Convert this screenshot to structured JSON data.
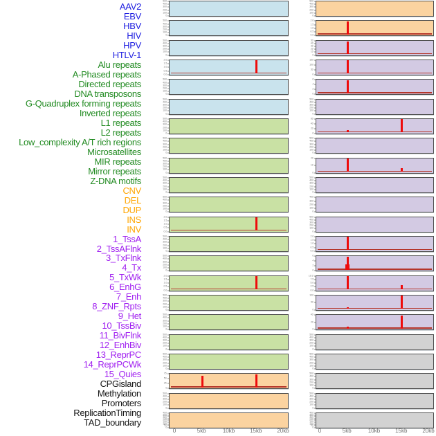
{
  "chart_data": {
    "type": "area",
    "description": "Grid of 44 small density panels in two columns (22 rows each, column-major order matching the label list). Red baseline curves with sharp spikes mark feature density around positions 5kb and 15kb on a 0-20kb axis.",
    "columns": 2,
    "rows_per_column": 22,
    "x_axis_left": {
      "tick_labels": [
        "0",
        "5kb",
        "10kb",
        "15kb",
        "20kb"
      ],
      "tick_kb": [
        0,
        5,
        10,
        15,
        20
      ],
      "range_kb": [
        0,
        20
      ]
    },
    "x_axis_right": {
      "tick_labels": [
        "0",
        "5kb",
        "10kb",
        "15kb",
        "20kb"
      ],
      "tick_kb": [
        0,
        5,
        10,
        15,
        20
      ],
      "range_kb": [
        0,
        20
      ]
    },
    "group_label_colors": {
      "virus": "#1c1ce0",
      "repeat": "#228B22",
      "sv": "#FFA500",
      "chromhmm": "#A020F0",
      "other": "#141414"
    },
    "panel_fill_colors": {
      "virus": "#C9E3ED",
      "repeat": "#C9E1A4",
      "sv": "#FBD3A0",
      "chromhmm": "#D3CAE3",
      "other": "#D2D2D2"
    },
    "signal_color": "#ee0b0b",
    "baseline_color": "#b5352a",
    "panels": [
      {
        "label": "AAV2",
        "group": "virus",
        "yticks": [
          "500",
          "400",
          "300",
          "200",
          "100",
          "0"
        ],
        "baseline": false,
        "spikes": []
      },
      {
        "label": "EBV",
        "group": "virus",
        "yticks": [
          "500",
          "400",
          "300",
          "200",
          "100",
          "0"
        ],
        "baseline": false,
        "spikes": []
      },
      {
        "label": "HBV",
        "group": "virus",
        "yticks": [
          "500",
          "400",
          "300",
          "200",
          "100",
          "0"
        ],
        "baseline": false,
        "spikes": []
      },
      {
        "label": "HIV",
        "group": "virus",
        "yticks": [
          "2.0",
          "1.5",
          "1.0",
          "0.5",
          "0.0"
        ],
        "baseline": true,
        "spikes": [
          {
            "kb": 15,
            "h": 1.0
          }
        ]
      },
      {
        "label": "HPV",
        "group": "virus",
        "yticks": [
          "500",
          "400",
          "300",
          "200",
          "100",
          "0"
        ],
        "baseline": false,
        "spikes": []
      },
      {
        "label": "HTLV-1",
        "group": "virus",
        "yticks": [
          "500",
          "400",
          "300",
          "200",
          "100",
          "0"
        ],
        "baseline": false,
        "spikes": []
      },
      {
        "label": "Alu repeats",
        "group": "repeat",
        "yticks": [
          "500",
          "400",
          "300",
          "200",
          "100",
          "0"
        ],
        "baseline": false,
        "spikes": []
      },
      {
        "label": "A-Phased repeats",
        "group": "repeat",
        "yticks": [
          "500",
          "400",
          "300",
          "200",
          "100",
          "0"
        ],
        "baseline": false,
        "spikes": []
      },
      {
        "label": "Directed repeats",
        "group": "repeat",
        "yticks": [
          "500",
          "400",
          "300",
          "200",
          "100",
          "0"
        ],
        "baseline": false,
        "spikes": []
      },
      {
        "label": "DNA transposons",
        "group": "repeat",
        "yticks": [
          "500",
          "400",
          "300",
          "200",
          "100",
          "0"
        ],
        "baseline": false,
        "spikes": []
      },
      {
        "label": "G-Quadruplex forming repeats",
        "group": "repeat",
        "yticks": [
          "500",
          "400",
          "300",
          "200",
          "100",
          "0"
        ],
        "baseline": false,
        "spikes": []
      },
      {
        "label": "Inverted repeats",
        "group": "repeat",
        "yticks": [
          "2.0",
          "1.5",
          "1.0",
          "0.5",
          "0.0"
        ],
        "baseline": true,
        "spikes": [
          {
            "kb": 15,
            "h": 1.0
          }
        ]
      },
      {
        "label": "L1 repeats",
        "group": "repeat",
        "yticks": [
          "500",
          "400",
          "300",
          "200",
          "100",
          "0"
        ],
        "baseline": false,
        "spikes": []
      },
      {
        "label": "L2 repeats",
        "group": "repeat",
        "yticks": [
          "500",
          "400",
          "300",
          "200",
          "100",
          "0"
        ],
        "baseline": false,
        "spikes": []
      },
      {
        "label": "Low_complexity A/T rich regions",
        "group": "repeat",
        "yticks": [
          "2.0",
          "1.5",
          "1.0",
          "0.5",
          "0.0"
        ],
        "baseline": true,
        "spikes": [
          {
            "kb": 15,
            "h": 1.0
          }
        ]
      },
      {
        "label": "Microsatellites",
        "group": "repeat",
        "yticks": [
          "500",
          "400",
          "300",
          "200",
          "100",
          "0"
        ],
        "baseline": false,
        "spikes": []
      },
      {
        "label": "MIR repeats",
        "group": "repeat",
        "yticks": [
          "500",
          "400",
          "300",
          "200",
          "100",
          "0"
        ],
        "baseline": false,
        "spikes": []
      },
      {
        "label": "Mirror repeats",
        "group": "repeat",
        "yticks": [
          "500",
          "400",
          "300",
          "200",
          "100",
          "0"
        ],
        "baseline": false,
        "spikes": []
      },
      {
        "label": "Z-DNA motifs",
        "group": "repeat",
        "yticks": [
          "500",
          "400",
          "300",
          "200",
          "100",
          "0"
        ],
        "baseline": false,
        "spikes": []
      },
      {
        "label": "CNV",
        "group": "sv",
        "yticks": [
          "75",
          "50",
          "25",
          "0"
        ],
        "baseline": true,
        "spikes": [
          {
            "kb": 5,
            "h": 0.88
          },
          {
            "kb": 15,
            "h": 0.97
          }
        ]
      },
      {
        "label": "DEL",
        "group": "sv",
        "yticks": [
          "500",
          "400",
          "300",
          "200",
          "100",
          "0"
        ],
        "baseline": false,
        "spikes": []
      },
      {
        "label": "DUP",
        "group": "sv",
        "yticks": [
          "400",
          "350",
          "300",
          "250",
          "200",
          "150",
          "100",
          "50",
          "0"
        ],
        "baseline": false,
        "spikes": []
      },
      {
        "label": "INS",
        "group": "sv",
        "yticks": [
          "500",
          "400",
          "300",
          "200",
          "100",
          "0"
        ],
        "baseline": false,
        "spikes": []
      },
      {
        "label": "INV",
        "group": "sv",
        "yticks": [
          "2.0",
          "1.5",
          "1.0",
          "0.5",
          "0.0"
        ],
        "baseline": true,
        "spikes": [
          {
            "kb": 5,
            "h": 1.0
          }
        ]
      },
      {
        "label": "1_TssA",
        "group": "chromhmm",
        "yticks": [
          "50",
          "40",
          "30",
          "20",
          "10",
          "0"
        ],
        "baseline": true,
        "spikes": [
          {
            "kb": 5,
            "h": 0.95
          }
        ]
      },
      {
        "label": "2_TssAFlnk",
        "group": "chromhmm",
        "yticks": [
          "150",
          "100",
          "50",
          "0"
        ],
        "baseline": true,
        "spikes": [
          {
            "kb": 5,
            "h": 1.0
          }
        ]
      },
      {
        "label": "3_TxFlnk",
        "group": "chromhmm",
        "yticks": [
          "6",
          "4",
          "2",
          "0"
        ],
        "baseline": true,
        "spikes": [
          {
            "kb": 5,
            "h": 1.0
          }
        ]
      },
      {
        "label": "4_Tx",
        "group": "chromhmm",
        "yticks": [
          "500",
          "400",
          "300",
          "200",
          "100",
          "0"
        ],
        "baseline": false,
        "spikes": []
      },
      {
        "label": "5_TxWk",
        "group": "chromhmm",
        "yticks": [
          "60",
          "40",
          "20",
          "0"
        ],
        "baseline": true,
        "spikes": [
          {
            "kb": 5,
            "h": 0.12
          },
          {
            "kb": 15,
            "h": 1.0
          }
        ]
      },
      {
        "label": "6_EnhG",
        "group": "chromhmm",
        "yticks": [
          "500",
          "400",
          "300",
          "200",
          "100",
          "0"
        ],
        "baseline": false,
        "spikes": []
      },
      {
        "label": "7_Enh",
        "group": "chromhmm",
        "yticks": [
          "20",
          "10",
          "0"
        ],
        "baseline": true,
        "spikes": [
          {
            "kb": 5,
            "h": 1.0
          },
          {
            "kb": 15,
            "h": 0.18
          }
        ]
      },
      {
        "label": "8_ZNF_Rpts",
        "group": "chromhmm",
        "yticks": [
          "500",
          "400",
          "300",
          "200",
          "100",
          "0"
        ],
        "baseline": false,
        "spikes": []
      },
      {
        "label": "9_Het",
        "group": "chromhmm",
        "yticks": [
          "400",
          "300",
          "200",
          "100",
          "0"
        ],
        "baseline": false,
        "spikes": []
      },
      {
        "label": "10_TssBiv",
        "group": "chromhmm",
        "yticks": [
          "500",
          "400",
          "300",
          "200",
          "100",
          "0"
        ],
        "baseline": false,
        "spikes": []
      },
      {
        "label": "11_BivFlnk",
        "group": "chromhmm",
        "yticks": [
          "2.0",
          "1.5",
          "1.0",
          "0.5",
          "0.0"
        ],
        "baseline": true,
        "spikes": [
          {
            "kb": 5,
            "h": 1.0
          }
        ]
      },
      {
        "label": "12_EnhBiv",
        "group": "chromhmm",
        "yticks": [
          "6",
          "4",
          "2",
          "0"
        ],
        "baseline": true,
        "spikes": [
          {
            "kb": 5,
            "h": 1.0
          },
          {
            "kb": 5,
            "h": 0.35,
            "w": 6
          }
        ]
      },
      {
        "label": "13_ReprPC",
        "group": "chromhmm",
        "yticks": [
          "10.0",
          "7.5",
          "5.0",
          "2.5",
          "0.0"
        ],
        "baseline": true,
        "spikes": [
          {
            "kb": 5,
            "h": 1.0
          },
          {
            "kb": 15,
            "h": 0.25
          }
        ]
      },
      {
        "label": "14_ReprPCWk",
        "group": "chromhmm",
        "yticks": [
          "100",
          "50",
          "0"
        ],
        "baseline": true,
        "spikes": [
          {
            "kb": 5,
            "h": 0.07
          },
          {
            "kb": 15,
            "h": 1.0
          }
        ]
      },
      {
        "label": "15_Quies",
        "group": "chromhmm",
        "yticks": [
          "40",
          "20",
          "0"
        ],
        "baseline": true,
        "spikes": [
          {
            "kb": 5,
            "h": 0.1
          },
          {
            "kb": 15,
            "h": 1.0
          }
        ]
      },
      {
        "label": "CPGisland",
        "group": "other",
        "yticks": [
          "500",
          "400",
          "300",
          "200",
          "100",
          "0"
        ],
        "baseline": false,
        "spikes": []
      },
      {
        "label": "Methylation",
        "group": "other",
        "yticks": [
          "500",
          "400",
          "300",
          "200",
          "100",
          "0"
        ],
        "baseline": false,
        "spikes": []
      },
      {
        "label": "Promoters",
        "group": "other",
        "yticks": [
          "500",
          "400",
          "300",
          "200",
          "100",
          "0"
        ],
        "baseline": false,
        "spikes": []
      },
      {
        "label": "ReplicationTiming",
        "group": "other",
        "yticks": [
          "500",
          "400",
          "300",
          "200",
          "100",
          "0"
        ],
        "baseline": false,
        "spikes": []
      },
      {
        "label": "TAD_boundary",
        "group": "other",
        "yticks": [
          "400",
          "350",
          "300",
          "250",
          "200",
          "150",
          "100",
          "50",
          "0"
        ],
        "baseline": false,
        "spikes": []
      }
    ]
  }
}
